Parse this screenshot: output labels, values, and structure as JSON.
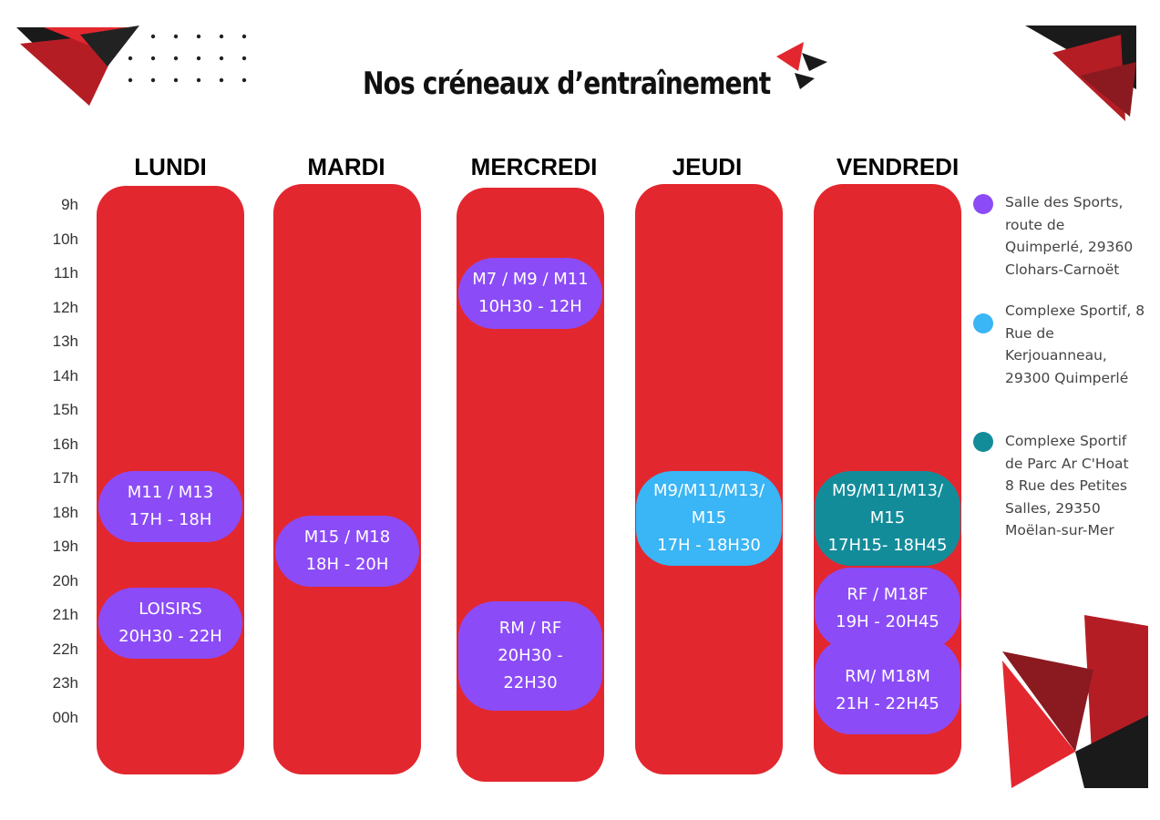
{
  "title": "Nos créneaux d’entraînement",
  "days": [
    "LUNDI",
    "MARDI",
    "MERCREDI",
    "JEUDI",
    "VENDREDI"
  ],
  "hours": [
    "9h",
    "10h",
    "11h",
    "12h",
    "13h",
    "14h",
    "15h",
    "16h",
    "17h",
    "18h",
    "19h",
    "20h",
    "21h",
    "22h",
    "23h",
    "00h"
  ],
  "slots": {
    "lundi_1": {
      "groups": "M11 / M13",
      "time": "17H - 18H"
    },
    "lundi_2": {
      "groups": "LOISIRS",
      "time": "20H30 - 22H"
    },
    "mardi_1": {
      "groups": "M15 / M18",
      "time": "18H - 20H"
    },
    "mercredi_1": {
      "groups": "M7 / M9 / M11",
      "time": "10H30 - 12H"
    },
    "mercredi_2": {
      "line1": "RM / RF",
      "line2": "20H30 -",
      "line3": "22H30"
    },
    "jeudi_1": {
      "line1": "M9/M11/M13/",
      "line2": "M15",
      "line3": "17H - 18H30"
    },
    "vendredi_1": {
      "line1": "M9/M11/M13/",
      "line2": "M15",
      "line3": "17H15- 18H45"
    },
    "vendredi_2": {
      "groups": "RF / M18F",
      "time": "19H - 20H45"
    },
    "vendredi_3": {
      "groups": "RM/ M18M",
      "time": "21H - 22H45"
    }
  },
  "legend": [
    {
      "color": "#8b4cf7",
      "text": "Salle des Sports,\nroute de\nQuimperlé, 29360\nClohars-Carnoët"
    },
    {
      "color": "#3ab5f5",
      "text": "Complexe Sportif, 8\nRue de\nKerjouanneau,\n29300 Quimperlé"
    },
    {
      "color": "#138c9a",
      "text": "Complexe Sportif\nde Parc Ar C'Hoat\n8 Rue des Petites\nSalles, 29350\nMoëlan-sur-Mer"
    }
  ],
  "colors": {
    "column": "#e3272f",
    "accent_dark": "#1a1a1a",
    "accent_red": "#d42027"
  }
}
